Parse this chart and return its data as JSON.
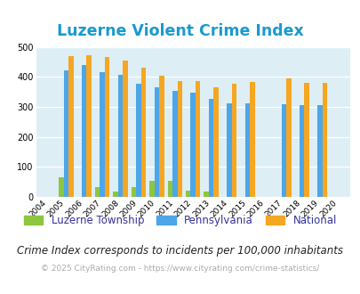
{
  "title": "Luzerne Violent Crime Index",
  "title_color": "#1a9acd",
  "years": [
    2004,
    2005,
    2006,
    2007,
    2008,
    2009,
    2010,
    2011,
    2012,
    2013,
    2014,
    2015,
    2016,
    2017,
    2018,
    2019,
    2020
  ],
  "luzerne": [
    0,
    67,
    0,
    33,
    17,
    33,
    55,
    55,
    20,
    17,
    0,
    0,
    0,
    0,
    0,
    0,
    0
  ],
  "pennsylvania": [
    0,
    422,
    440,
    416,
    408,
    379,
    365,
    353,
    347,
    327,
    313,
    313,
    0,
    310,
    305,
    305,
    0
  ],
  "national": [
    0,
    469,
    473,
    467,
    455,
    431,
    405,
    387,
    387,
    367,
    377,
    384,
    0,
    394,
    381,
    381,
    0
  ],
  "luzerne_color": "#8dc63f",
  "pennsylvania_color": "#4da6e8",
  "national_color": "#f5a623",
  "bg_color": "#ddeef5",
  "ylim": [
    0,
    500
  ],
  "yticks": [
    0,
    100,
    200,
    300,
    400,
    500
  ],
  "subtitle": "Crime Index corresponds to incidents per 100,000 inhabitants",
  "footer": "© 2025 CityRating.com - https://www.cityrating.com/crime-statistics/",
  "legend_labels": [
    "Luzerne Township",
    "Pennsylvania",
    "National"
  ]
}
